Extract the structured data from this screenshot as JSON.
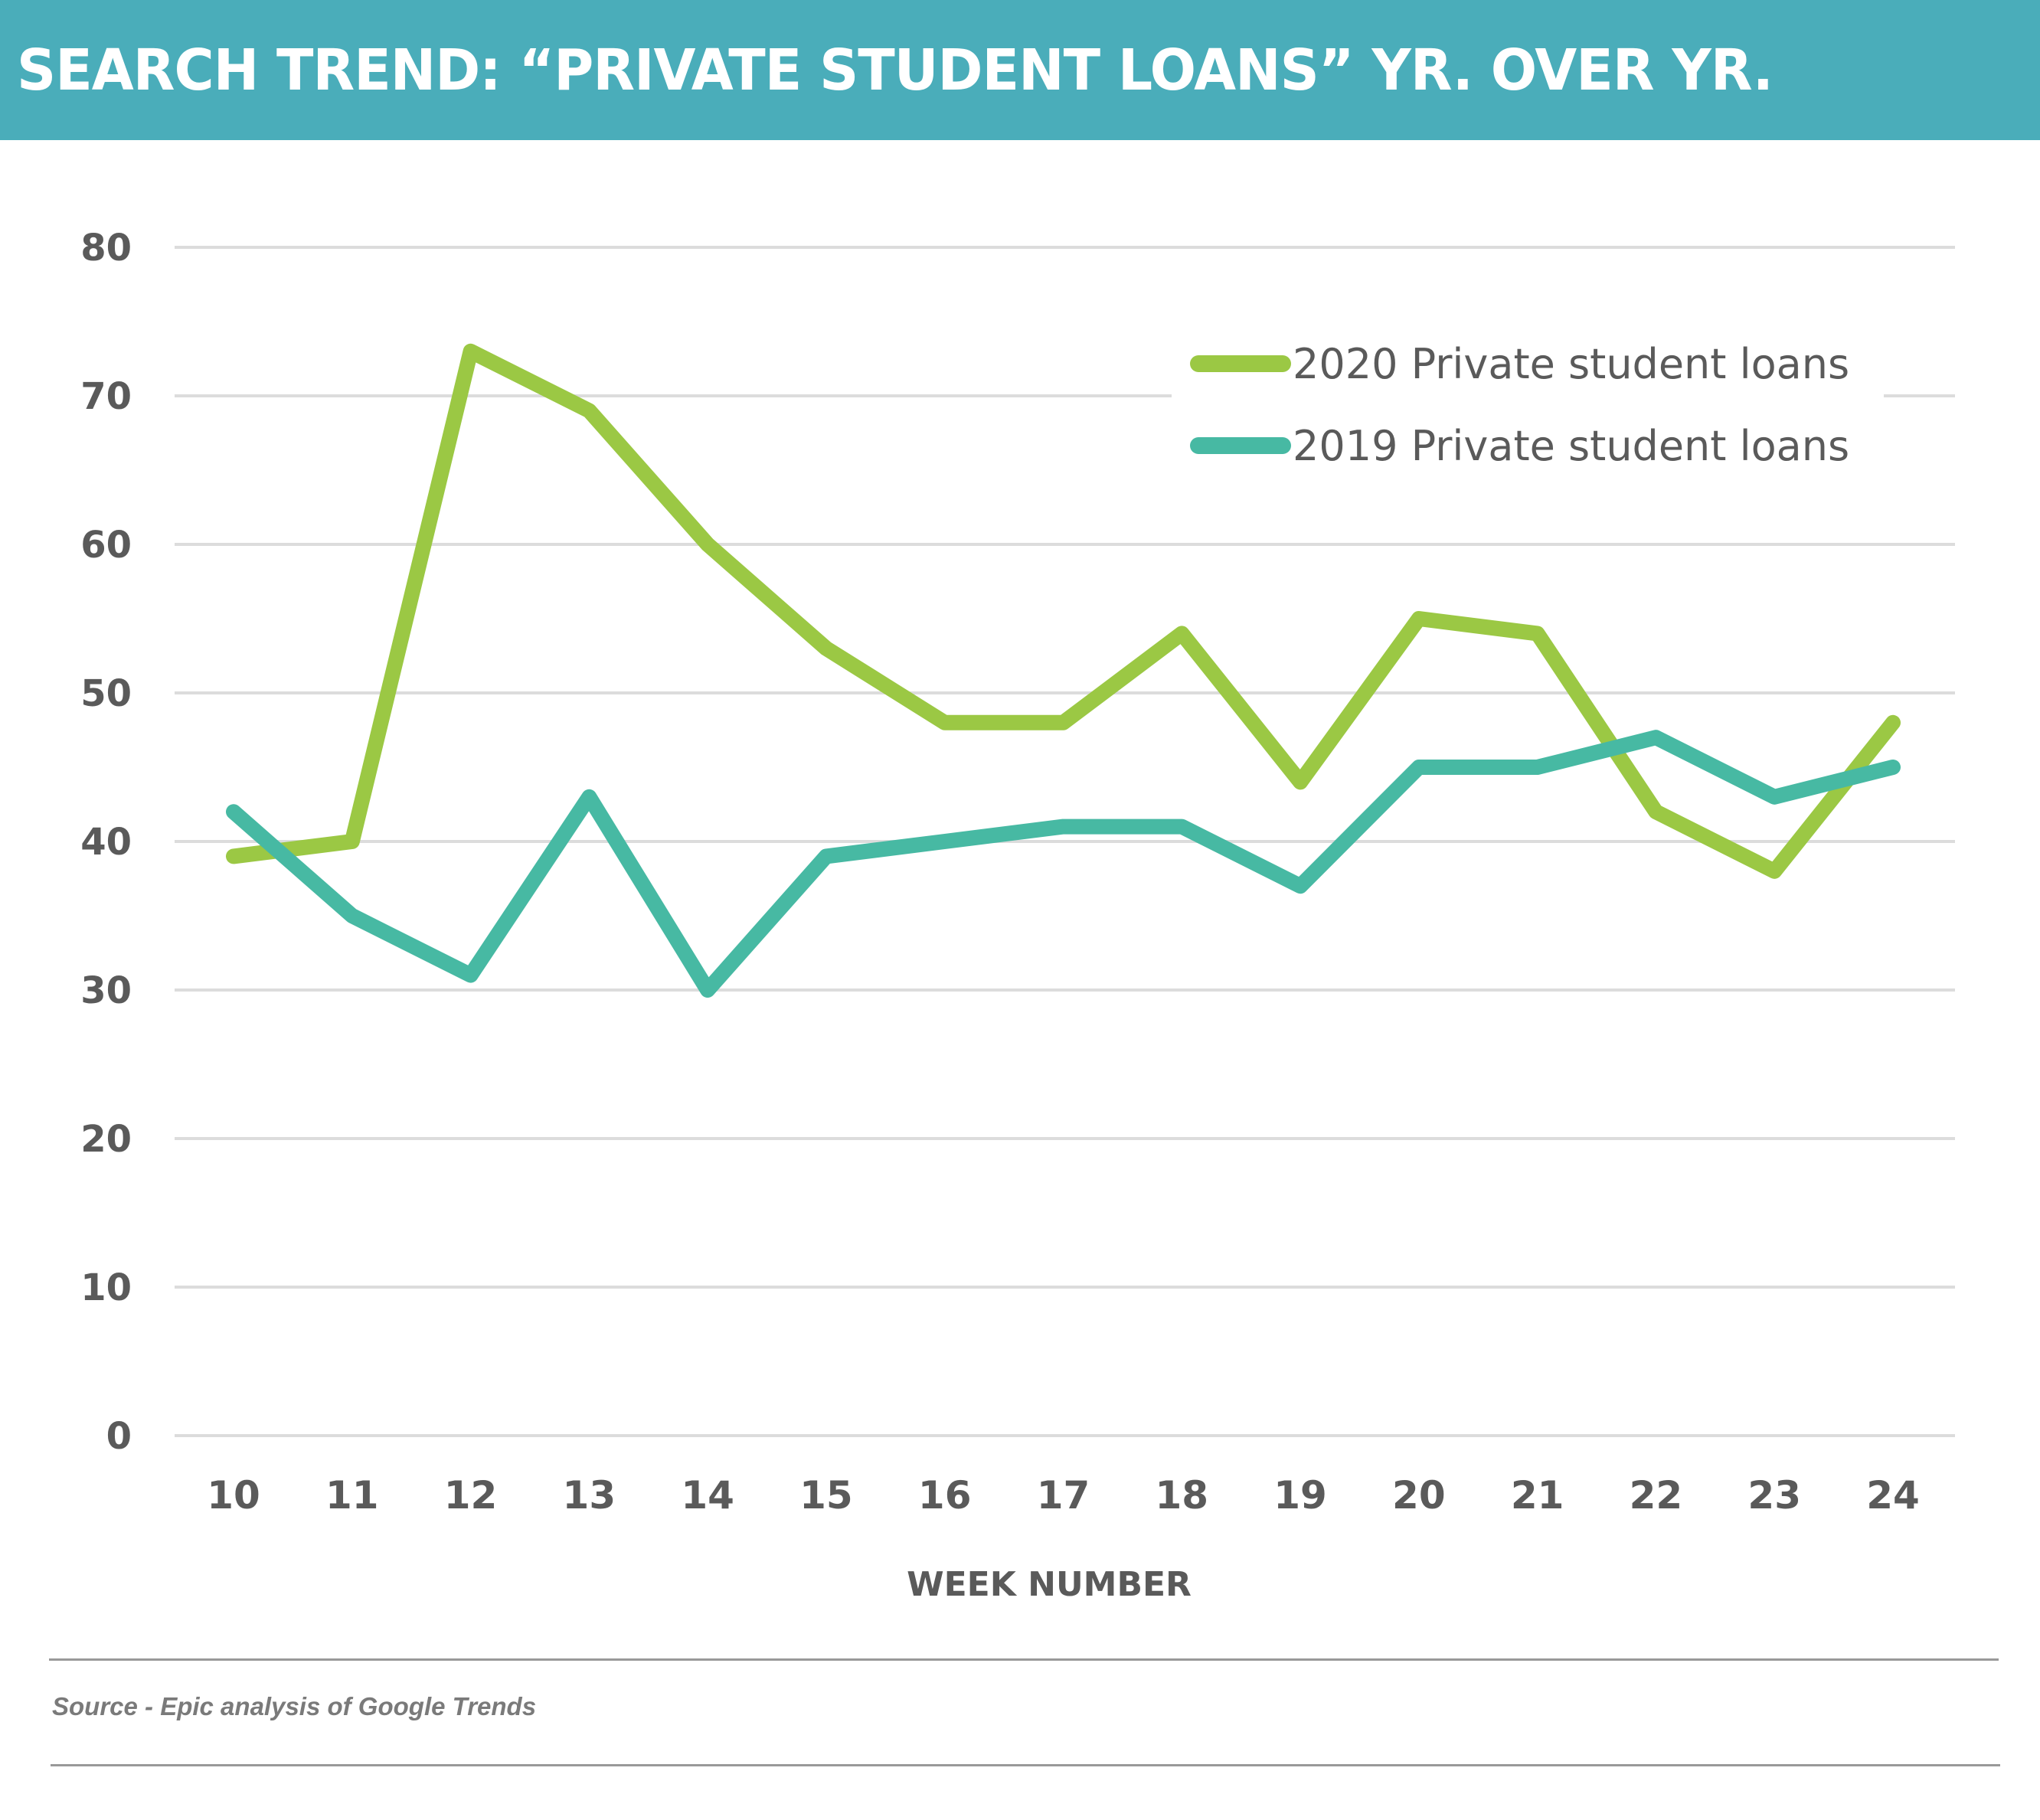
{
  "header": {
    "title": "SEARCH TREND: “PRIVATE STUDENT LOANS” YR. OVER YR.",
    "background_color": "#4aadba"
  },
  "legend": {
    "items": [
      {
        "label": "2020 Private student loans",
        "color": "#9bc844"
      },
      {
        "label": "2019 Private student loans",
        "color": "#47b9a3"
      }
    ]
  },
  "axes": {
    "y_ticks": [
      "80",
      "70",
      "60",
      "50",
      "40",
      "30",
      "20",
      "10",
      "0"
    ],
    "x_ticks": [
      "10",
      "11",
      "12",
      "13",
      "14",
      "15",
      "16",
      "17",
      "18",
      "19",
      "20",
      "21",
      "22",
      "23",
      "24"
    ],
    "x_title": "WEEK NUMBER"
  },
  "footer": {
    "source": "Source - Epic analysis of Google Trends"
  },
  "chart_data": {
    "type": "line",
    "title": "SEARCH TREND: “PRIVATE STUDENT LOANS” YR. OVER YR.",
    "xlabel": "WEEK NUMBER",
    "ylabel": "",
    "x": [
      10,
      11,
      12,
      13,
      14,
      15,
      16,
      17,
      18,
      19,
      20,
      21,
      22,
      23,
      24
    ],
    "series": [
      {
        "name": "2020 Private student loans",
        "color": "#9bc844",
        "values": [
          39,
          40,
          73,
          69,
          60,
          53,
          48,
          48,
          54,
          44,
          55,
          54,
          42,
          38,
          48
        ]
      },
      {
        "name": "2019 Private student loans",
        "color": "#47b9a3",
        "values": [
          42,
          35,
          31,
          43,
          30,
          39,
          40,
          41,
          41,
          37,
          45,
          45,
          47,
          43,
          45
        ]
      }
    ],
    "ylim": [
      0,
      80
    ],
    "yticks": [
      0,
      10,
      20,
      30,
      40,
      50,
      60,
      70,
      80
    ],
    "grid": "horizontal",
    "legend_position": "upper right (inside plot)"
  }
}
